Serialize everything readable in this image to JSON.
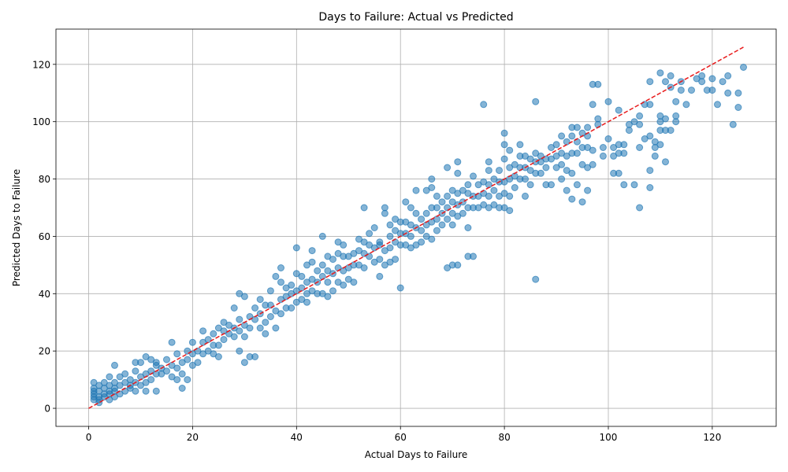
{
  "chart_data": {
    "type": "scatter",
    "title": "Days to Failure: Actual vs Predicted",
    "xlabel": "Actual Days to Failure",
    "ylabel": "Predicted Days to Failure",
    "xlim": [
      -6.3,
      132.3
    ],
    "ylim": [
      -6.3,
      132.3
    ],
    "xticks": [
      0,
      20,
      40,
      60,
      80,
      100,
      120
    ],
    "yticks": [
      0,
      20,
      40,
      60,
      80,
      100,
      120
    ],
    "grid": true,
    "point_color": "#1f77b4",
    "point_alpha": 0.55,
    "reference_line": {
      "style": "dashed",
      "color": "#e8191a",
      "x": [
        0,
        126
      ],
      "y": [
        0,
        126
      ]
    },
    "points": [
      [
        1,
        3
      ],
      [
        1,
        5
      ],
      [
        1,
        7
      ],
      [
        1,
        9
      ],
      [
        1,
        4
      ],
      [
        1,
        6
      ],
      [
        2,
        2
      ],
      [
        2,
        4
      ],
      [
        2,
        6
      ],
      [
        2,
        8
      ],
      [
        2,
        3
      ],
      [
        3,
        5
      ],
      [
        3,
        7
      ],
      [
        3,
        4
      ],
      [
        3,
        9
      ],
      [
        4,
        3
      ],
      [
        4,
        6
      ],
      [
        4,
        8
      ],
      [
        4,
        11
      ],
      [
        4,
        5
      ],
      [
        5,
        4
      ],
      [
        5,
        7
      ],
      [
        5,
        9
      ],
      [
        5,
        15
      ],
      [
        5,
        6
      ],
      [
        6,
        5
      ],
      [
        6,
        8
      ],
      [
        6,
        11
      ],
      [
        7,
        6
      ],
      [
        7,
        9
      ],
      [
        7,
        12
      ],
      [
        8,
        7
      ],
      [
        8,
        10
      ],
      [
        8,
        8
      ],
      [
        9,
        6
      ],
      [
        9,
        9
      ],
      [
        9,
        13
      ],
      [
        9,
        16
      ],
      [
        10,
        8
      ],
      [
        10,
        11
      ],
      [
        10,
        16
      ],
      [
        11,
        9
      ],
      [
        11,
        12
      ],
      [
        11,
        18
      ],
      [
        11,
        6
      ],
      [
        12,
        10
      ],
      [
        12,
        13
      ],
      [
        12,
        17
      ],
      [
        13,
        12
      ],
      [
        13,
        15
      ],
      [
        13,
        6
      ],
      [
        13,
        16
      ],
      [
        14,
        12
      ],
      [
        14,
        14
      ],
      [
        15,
        13
      ],
      [
        15,
        17
      ],
      [
        16,
        11
      ],
      [
        16,
        15
      ],
      [
        16,
        23
      ],
      [
        17,
        10
      ],
      [
        17,
        14
      ],
      [
        17,
        19
      ],
      [
        18,
        12
      ],
      [
        18,
        16
      ],
      [
        18,
        7
      ],
      [
        19,
        10
      ],
      [
        19,
        17
      ],
      [
        19,
        20
      ],
      [
        20,
        15
      ],
      [
        20,
        19
      ],
      [
        20,
        23
      ],
      [
        21,
        16
      ],
      [
        21,
        20
      ],
      [
        22,
        19
      ],
      [
        22,
        23
      ],
      [
        22,
        27
      ],
      [
        23,
        20
      ],
      [
        23,
        24
      ],
      [
        24,
        19
      ],
      [
        24,
        22
      ],
      [
        24,
        26
      ],
      [
        25,
        18
      ],
      [
        25,
        22
      ],
      [
        25,
        28
      ],
      [
        26,
        24
      ],
      [
        26,
        27
      ],
      [
        26,
        30
      ],
      [
        27,
        26
      ],
      [
        27,
        29
      ],
      [
        28,
        25
      ],
      [
        28,
        28
      ],
      [
        28,
        35
      ],
      [
        29,
        27
      ],
      [
        29,
        31
      ],
      [
        29,
        40
      ],
      [
        29,
        20
      ],
      [
        30,
        25
      ],
      [
        30,
        29
      ],
      [
        30,
        16
      ],
      [
        30,
        39
      ],
      [
        31,
        18
      ],
      [
        31,
        28
      ],
      [
        31,
        32
      ],
      [
        32,
        18
      ],
      [
        32,
        31
      ],
      [
        32,
        35
      ],
      [
        33,
        28
      ],
      [
        33,
        33
      ],
      [
        33,
        38
      ],
      [
        34,
        26
      ],
      [
        34,
        30
      ],
      [
        34,
        36
      ],
      [
        35,
        32
      ],
      [
        35,
        36
      ],
      [
        35,
        41
      ],
      [
        36,
        28
      ],
      [
        36,
        34
      ],
      [
        36,
        46
      ],
      [
        37,
        33
      ],
      [
        37,
        38
      ],
      [
        37,
        44
      ],
      [
        37,
        49
      ],
      [
        38,
        35
      ],
      [
        38,
        39
      ],
      [
        38,
        42
      ],
      [
        39,
        35
      ],
      [
        39,
        40
      ],
      [
        39,
        43
      ],
      [
        40,
        37
      ],
      [
        40,
        41
      ],
      [
        40,
        47
      ],
      [
        40,
        56
      ],
      [
        41,
        38
      ],
      [
        41,
        42
      ],
      [
        41,
        46
      ],
      [
        42,
        37
      ],
      [
        42,
        40
      ],
      [
        42,
        44
      ],
      [
        42,
        50
      ],
      [
        43,
        41
      ],
      [
        43,
        45
      ],
      [
        43,
        51
      ],
      [
        43,
        55
      ],
      [
        44,
        40
      ],
      [
        44,
        44
      ],
      [
        44,
        48
      ],
      [
        45,
        40
      ],
      [
        45,
        46
      ],
      [
        45,
        50
      ],
      [
        45,
        60
      ],
      [
        46,
        39
      ],
      [
        46,
        44
      ],
      [
        46,
        48
      ],
      [
        46,
        53
      ],
      [
        47,
        41
      ],
      [
        47,
        47
      ],
      [
        47,
        52
      ],
      [
        48,
        44
      ],
      [
        48,
        49
      ],
      [
        48,
        54
      ],
      [
        48,
        58
      ],
      [
        49,
        43
      ],
      [
        49,
        48
      ],
      [
        49,
        53
      ],
      [
        49,
        57
      ],
      [
        50,
        45
      ],
      [
        50,
        49
      ],
      [
        50,
        53
      ],
      [
        51,
        44
      ],
      [
        51,
        50
      ],
      [
        51,
        54
      ],
      [
        52,
        50
      ],
      [
        52,
        55
      ],
      [
        52,
        59
      ],
      [
        53,
        49
      ],
      [
        53,
        54
      ],
      [
        53,
        58
      ],
      [
        53,
        70
      ],
      [
        54,
        53
      ],
      [
        54,
        57
      ],
      [
        54,
        61
      ],
      [
        55,
        51
      ],
      [
        55,
        56
      ],
      [
        55,
        63
      ],
      [
        56,
        46
      ],
      [
        56,
        52
      ],
      [
        56,
        57
      ],
      [
        56,
        58
      ],
      [
        57,
        50
      ],
      [
        57,
        55
      ],
      [
        57,
        68
      ],
      [
        57,
        70
      ],
      [
        58,
        51
      ],
      [
        58,
        56
      ],
      [
        58,
        60
      ],
      [
        58,
        64
      ],
      [
        59,
        52
      ],
      [
        59,
        58
      ],
      [
        59,
        62
      ],
      [
        59,
        66
      ],
      [
        60,
        42
      ],
      [
        60,
        57
      ],
      [
        60,
        61
      ],
      [
        60,
        65
      ],
      [
        61,
        57
      ],
      [
        61,
        61
      ],
      [
        61,
        65
      ],
      [
        61,
        72
      ],
      [
        62,
        56
      ],
      [
        62,
        60
      ],
      [
        62,
        64
      ],
      [
        62,
        70
      ],
      [
        63,
        57
      ],
      [
        63,
        63
      ],
      [
        63,
        68
      ],
      [
        63,
        76
      ],
      [
        64,
        58
      ],
      [
        64,
        62
      ],
      [
        64,
        66
      ],
      [
        65,
        60
      ],
      [
        65,
        64
      ],
      [
        65,
        68
      ],
      [
        65,
        76
      ],
      [
        66,
        59
      ],
      [
        66,
        65
      ],
      [
        66,
        70
      ],
      [
        66,
        77
      ],
      [
        66,
        80
      ],
      [
        67,
        62
      ],
      [
        67,
        66
      ],
      [
        67,
        70
      ],
      [
        67,
        74
      ],
      [
        68,
        64
      ],
      [
        68,
        68
      ],
      [
        68,
        72
      ],
      [
        69,
        49
      ],
      [
        69,
        66
      ],
      [
        69,
        70
      ],
      [
        69,
        74
      ],
      [
        69,
        84
      ],
      [
        70,
        50
      ],
      [
        70,
        64
      ],
      [
        70,
        68
      ],
      [
        70,
        72
      ],
      [
        70,
        76
      ],
      [
        71,
        50
      ],
      [
        71,
        67
      ],
      [
        71,
        71
      ],
      [
        71,
        75
      ],
      [
        71,
        82
      ],
      [
        71,
        86
      ],
      [
        72,
        68
      ],
      [
        72,
        72
      ],
      [
        72,
        76
      ],
      [
        73,
        53
      ],
      [
        73,
        63
      ],
      [
        73,
        70
      ],
      [
        73,
        75
      ],
      [
        73,
        78
      ],
      [
        74,
        53
      ],
      [
        74,
        70
      ],
      [
        74,
        74
      ],
      [
        74,
        81
      ],
      [
        75,
        70
      ],
      [
        75,
        74
      ],
      [
        75,
        78
      ],
      [
        76,
        71
      ],
      [
        76,
        75
      ],
      [
        76,
        79
      ],
      [
        76,
        106
      ],
      [
        77,
        70
      ],
      [
        77,
        74
      ],
      [
        77,
        78
      ],
      [
        77,
        83
      ],
      [
        77,
        86
      ],
      [
        78,
        71
      ],
      [
        78,
        76
      ],
      [
        78,
        80
      ],
      [
        79,
        70
      ],
      [
        79,
        74
      ],
      [
        79,
        79
      ],
      [
        79,
        83
      ],
      [
        80,
        70
      ],
      [
        80,
        75
      ],
      [
        80,
        79
      ],
      [
        80,
        87
      ],
      [
        80,
        92
      ],
      [
        80,
        96
      ],
      [
        81,
        69
      ],
      [
        81,
        74
      ],
      [
        81,
        80
      ],
      [
        81,
        84
      ],
      [
        81,
        90
      ],
      [
        82,
        77
      ],
      [
        82,
        81
      ],
      [
        82,
        85
      ],
      [
        83,
        80
      ],
      [
        83,
        84
      ],
      [
        83,
        88
      ],
      [
        83,
        92
      ],
      [
        84,
        74
      ],
      [
        84,
        80
      ],
      [
        84,
        84
      ],
      [
        84,
        88
      ],
      [
        85,
        78
      ],
      [
        85,
        83
      ],
      [
        85,
        87
      ],
      [
        86,
        45
      ],
      [
        86,
        82
      ],
      [
        86,
        86
      ],
      [
        86,
        89
      ],
      [
        86,
        107
      ],
      [
        87,
        82
      ],
      [
        87,
        86
      ],
      [
        87,
        88
      ],
      [
        88,
        78
      ],
      [
        88,
        84
      ],
      [
        88,
        87
      ],
      [
        89,
        78
      ],
      [
        89,
        87
      ],
      [
        89,
        91
      ],
      [
        90,
        84
      ],
      [
        90,
        88
      ],
      [
        90,
        92
      ],
      [
        91,
        80
      ],
      [
        91,
        85
      ],
      [
        91,
        89
      ],
      [
        91,
        95
      ],
      [
        92,
        76
      ],
      [
        92,
        83
      ],
      [
        92,
        88
      ],
      [
        92,
        93
      ],
      [
        93,
        73
      ],
      [
        93,
        82
      ],
      [
        93,
        89
      ],
      [
        93,
        95
      ],
      [
        93,
        98
      ],
      [
        94,
        78
      ],
      [
        94,
        89
      ],
      [
        94,
        93
      ],
      [
        94,
        98
      ],
      [
        95,
        72
      ],
      [
        95,
        85
      ],
      [
        95,
        91
      ],
      [
        95,
        96
      ],
      [
        96,
        76
      ],
      [
        96,
        84
      ],
      [
        96,
        91
      ],
      [
        96,
        95
      ],
      [
        96,
        98
      ],
      [
        97,
        85
      ],
      [
        97,
        90
      ],
      [
        97,
        106
      ],
      [
        97,
        113
      ],
      [
        98,
        99
      ],
      [
        98,
        101
      ],
      [
        98,
        113
      ],
      [
        99,
        88
      ],
      [
        99,
        91
      ],
      [
        100,
        94
      ],
      [
        100,
        107
      ],
      [
        101,
        82
      ],
      [
        101,
        88
      ],
      [
        101,
        91
      ],
      [
        102,
        82
      ],
      [
        102,
        89
      ],
      [
        102,
        92
      ],
      [
        102,
        104
      ],
      [
        103,
        78
      ],
      [
        103,
        89
      ],
      [
        103,
        92
      ],
      [
        104,
        97
      ],
      [
        104,
        99
      ],
      [
        105,
        78
      ],
      [
        105,
        100
      ],
      [
        106,
        70
      ],
      [
        106,
        91
      ],
      [
        106,
        99
      ],
      [
        106,
        102
      ],
      [
        107,
        94
      ],
      [
        107,
        106
      ],
      [
        108,
        77
      ],
      [
        108,
        83
      ],
      [
        108,
        95
      ],
      [
        108,
        106
      ],
      [
        108,
        114
      ],
      [
        109,
        88
      ],
      [
        109,
        91
      ],
      [
        109,
        93
      ],
      [
        110,
        92
      ],
      [
        110,
        97
      ],
      [
        110,
        100
      ],
      [
        110,
        102
      ],
      [
        110,
        117
      ],
      [
        111,
        86
      ],
      [
        111,
        97
      ],
      [
        111,
        101
      ],
      [
        111,
        114
      ],
      [
        112,
        97
      ],
      [
        112,
        112
      ],
      [
        112,
        116
      ],
      [
        113,
        100
      ],
      [
        113,
        102
      ],
      [
        113,
        107
      ],
      [
        114,
        111
      ],
      [
        114,
        114
      ],
      [
        115,
        106
      ],
      [
        116,
        111
      ],
      [
        117,
        115
      ],
      [
        118,
        114
      ],
      [
        118,
        116
      ],
      [
        119,
        111
      ],
      [
        120,
        111
      ],
      [
        120,
        115
      ],
      [
        121,
        106
      ],
      [
        122,
        114
      ],
      [
        123,
        110
      ],
      [
        123,
        116
      ],
      [
        124,
        99
      ],
      [
        125,
        105
      ],
      [
        125,
        110
      ],
      [
        126,
        119
      ]
    ]
  }
}
